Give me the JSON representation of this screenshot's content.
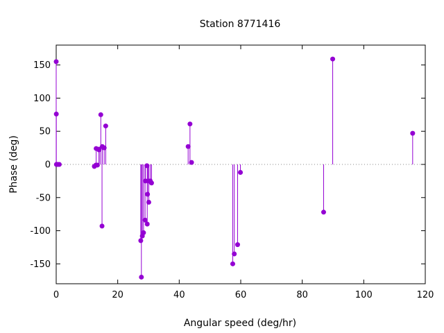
{
  "chart_data": {
    "type": "stem",
    "title": "Station 8771416",
    "xlabel": "Angular speed (deg/hr)",
    "ylabel": "Phase (deg)",
    "xlim": [
      0,
      120
    ],
    "ylim": [
      -180,
      180
    ],
    "xticks": [
      0,
      20,
      40,
      60,
      80,
      100,
      120
    ],
    "yticks": [
      -150,
      -100,
      -50,
      0,
      50,
      100,
      150
    ],
    "grid": false,
    "zero_line": "dotted",
    "color": "#9400d3",
    "points": [
      {
        "x": 0.0,
        "y": 155
      },
      {
        "x": 0.04,
        "y": 76
      },
      {
        "x": 0.08,
        "y": 0
      },
      {
        "x": 0.16,
        "y": 0
      },
      {
        "x": 0.5,
        "y": 0
      },
      {
        "x": 1.0,
        "y": 0
      },
      {
        "x": 12.4,
        "y": -3
      },
      {
        "x": 12.9,
        "y": -1
      },
      {
        "x": 13.0,
        "y": 24
      },
      {
        "x": 13.4,
        "y": -1
      },
      {
        "x": 13.9,
        "y": 22
      },
      {
        "x": 14.0,
        "y": 23
      },
      {
        "x": 14.5,
        "y": 75
      },
      {
        "x": 14.9,
        "y": -93
      },
      {
        "x": 15.0,
        "y": 27
      },
      {
        "x": 15.6,
        "y": 25
      },
      {
        "x": 16.1,
        "y": 58
      },
      {
        "x": 27.5,
        "y": -115
      },
      {
        "x": 27.7,
        "y": -170
      },
      {
        "x": 28.0,
        "y": -108
      },
      {
        "x": 28.4,
        "y": -103
      },
      {
        "x": 28.9,
        "y": -84
      },
      {
        "x": 29.0,
        "y": -25
      },
      {
        "x": 29.5,
        "y": -2
      },
      {
        "x": 29.6,
        "y": -90
      },
      {
        "x": 29.7,
        "y": -45
      },
      {
        "x": 30.0,
        "y": -25
      },
      {
        "x": 30.1,
        "y": -57
      },
      {
        "x": 30.6,
        "y": -25
      },
      {
        "x": 31.0,
        "y": -28
      },
      {
        "x": 42.9,
        "y": 27
      },
      {
        "x": 43.5,
        "y": 61
      },
      {
        "x": 44.0,
        "y": 3
      },
      {
        "x": 57.4,
        "y": -150
      },
      {
        "x": 57.9,
        "y": -135
      },
      {
        "x": 58.98,
        "y": -121
      },
      {
        "x": 59.9,
        "y": -12
      },
      {
        "x": 86.95,
        "y": -72
      },
      {
        "x": 89.9,
        "y": 159
      },
      {
        "x": 115.9,
        "y": 47
      }
    ]
  }
}
